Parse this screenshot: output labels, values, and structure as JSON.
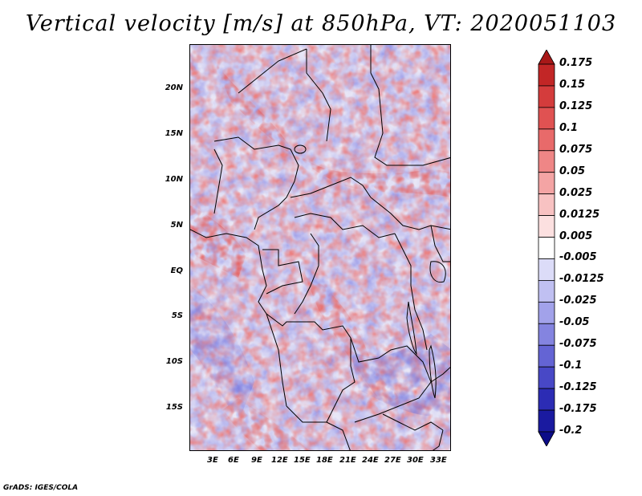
{
  "title": "Vertical velocity [m/s] at 850hPa, VT: 2020051103",
  "footer": "GrADS: IGES/COLA",
  "map": {
    "lat_labels": [
      "20N",
      "15N",
      "10N",
      "5N",
      "EQ",
      "5S",
      "10S",
      "15S"
    ],
    "lon_labels": [
      "3E",
      "6E",
      "9E",
      "12E",
      "15E",
      "18E",
      "21E",
      "24E",
      "27E",
      "30E",
      "33E"
    ],
    "lat_range": [
      -20,
      24.4
    ],
    "lon_range": [
      0,
      34.5
    ],
    "field": "vertical velocity at 850hPa",
    "units": "m/s"
  },
  "colorbar": {
    "labels": [
      "0.175",
      "0.15",
      "0.125",
      "0.1",
      "0.075",
      "0.05",
      "0.025",
      "0.0125",
      "0.005",
      "-0.005",
      "-0.0125",
      "-0.025",
      "-0.05",
      "-0.075",
      "-0.1",
      "-0.125",
      "-0.175",
      "-0.2"
    ],
    "colors": [
      "#a81818",
      "#c22626",
      "#d43c3c",
      "#e05252",
      "#e86a6a",
      "#ef8686",
      "#f4a4a4",
      "#f8c2c2",
      "#fce0e0",
      "#ffffff",
      "#dcdcf8",
      "#c0c0f2",
      "#a2a2ea",
      "#8484e0",
      "#6464d4",
      "#4848c6",
      "#2c2cb4",
      "#1a1aa0",
      "#0c0c88"
    ]
  }
}
